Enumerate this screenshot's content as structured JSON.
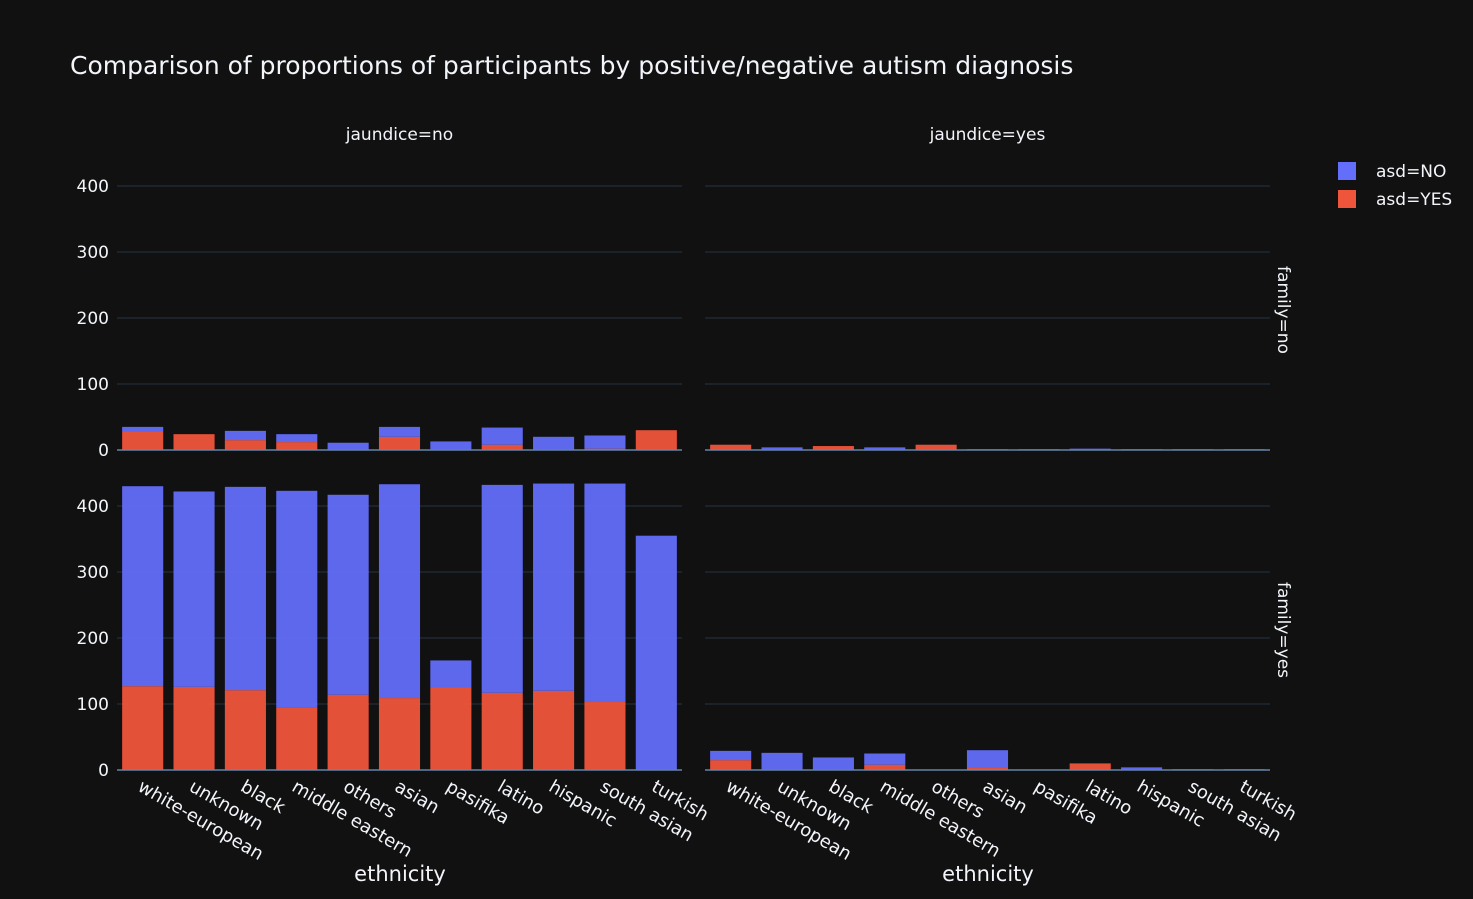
{
  "chart_data": {
    "type": "bar",
    "title": "Comparison of proportions of participants by positive/negative autism diagnosis",
    "xlabel": "ethnicity",
    "ylabel": "",
    "ylim": [
      0,
      440
    ],
    "yticks": [
      0,
      100,
      200,
      300,
      400
    ],
    "grid": true,
    "legend_position": "top-right",
    "categories": [
      "white-european",
      "unknown",
      "black",
      "middle eastern",
      "others",
      "asian",
      "pasifika",
      "latino",
      "hispanic",
      "south asian",
      "turkish"
    ],
    "col_labels": [
      "jaundice=no",
      "jaundice=yes"
    ],
    "row_labels": [
      "family=no",
      "family=yes"
    ],
    "series": [
      {
        "name": "asd=NO",
        "color": "#636efa"
      },
      {
        "name": "asd=YES",
        "color": "#ef553b"
      }
    ],
    "panels": [
      {
        "label": "jaundice=no, family=no",
        "row": 0,
        "col": 0,
        "stacks": [
          [
            {
              "series": 1,
              "value": 28
            },
            {
              "series": 0,
              "value": 7
            }
          ],
          [
            {
              "series": 1,
              "value": 24
            },
            {
              "series": 0,
              "value": 0
            }
          ],
          [
            {
              "series": 1,
              "value": 15
            },
            {
              "series": 0,
              "value": 14
            }
          ],
          [
            {
              "series": 1,
              "value": 12
            },
            {
              "series": 0,
              "value": 12
            }
          ],
          [
            {
              "series": 1,
              "value": 0
            },
            {
              "series": 0,
              "value": 11
            }
          ],
          [
            {
              "series": 1,
              "value": 20
            },
            {
              "series": 0,
              "value": 15
            }
          ],
          [
            {
              "series": 1,
              "value": 0
            },
            {
              "series": 0,
              "value": 13
            }
          ],
          [
            {
              "series": 1,
              "value": 8
            },
            {
              "series": 0,
              "value": 26
            }
          ],
          [
            {
              "series": 1,
              "value": 0
            },
            {
              "series": 0,
              "value": 20
            }
          ],
          [
            {
              "series": 1,
              "value": 2
            },
            {
              "series": 0,
              "value": 20
            }
          ],
          [
            {
              "series": 1,
              "value": 30
            },
            {
              "series": 0,
              "value": 0
            }
          ]
        ]
      },
      {
        "label": "jaundice=yes, family=no",
        "row": 0,
        "col": 1,
        "stacks": [
          [
            {
              "series": 1,
              "value": 8
            },
            {
              "series": 0,
              "value": 0
            }
          ],
          [
            {
              "series": 1,
              "value": 0
            },
            {
              "series": 0,
              "value": 4
            }
          ],
          [
            {
              "series": 1,
              "value": 6
            },
            {
              "series": 0,
              "value": 0
            }
          ],
          [
            {
              "series": 1,
              "value": 0
            },
            {
              "series": 0,
              "value": 4
            }
          ],
          [
            {
              "series": 1,
              "value": 8
            },
            {
              "series": 0,
              "value": 0
            }
          ],
          [
            {
              "series": 1,
              "value": 0
            },
            {
              "series": 0,
              "value": 1
            }
          ],
          [
            {
              "series": 1,
              "value": 0
            },
            {
              "series": 0,
              "value": 1
            }
          ],
          [
            {
              "series": 1,
              "value": 0
            },
            {
              "series": 0,
              "value": 2
            }
          ],
          [
            {
              "series": 1,
              "value": 0
            },
            {
              "series": 0,
              "value": 1
            }
          ],
          [
            {
              "series": 1,
              "value": 0
            },
            {
              "series": 0,
              "value": 1
            }
          ],
          [
            {
              "series": 1,
              "value": 0
            },
            {
              "series": 0,
              "value": 1
            }
          ]
        ]
      },
      {
        "label": "jaundice=no, family=yes",
        "row": 1,
        "col": 0,
        "stacks": [
          [
            {
              "series": 1,
              "value": 127
            },
            {
              "series": 0,
              "value": 303
            }
          ],
          [
            {
              "series": 1,
              "value": 126
            },
            {
              "series": 0,
              "value": 296
            }
          ],
          [
            {
              "series": 1,
              "value": 121
            },
            {
              "series": 0,
              "value": 308
            }
          ],
          [
            {
              "series": 1,
              "value": 94
            },
            {
              "series": 0,
              "value": 329
            }
          ],
          [
            {
              "series": 1,
              "value": 114
            },
            {
              "series": 0,
              "value": 303
            }
          ],
          [
            {
              "series": 1,
              "value": 109
            },
            {
              "series": 0,
              "value": 324
            }
          ],
          [
            {
              "series": 1,
              "value": 125
            },
            {
              "series": 0,
              "value": 41
            }
          ],
          [
            {
              "series": 1,
              "value": 117
            },
            {
              "series": 0,
              "value": 315
            }
          ],
          [
            {
              "series": 1,
              "value": 120
            },
            {
              "series": 0,
              "value": 314
            }
          ],
          [
            {
              "series": 1,
              "value": 103
            },
            {
              "series": 0,
              "value": 331
            }
          ],
          [
            {
              "series": 1,
              "value": 0
            },
            {
              "series": 0,
              "value": 355
            }
          ]
        ]
      },
      {
        "label": "jaundice=yes, family=yes",
        "row": 1,
        "col": 1,
        "stacks": [
          [
            {
              "series": 1,
              "value": 15
            },
            {
              "series": 0,
              "value": 14
            }
          ],
          [
            {
              "series": 1,
              "value": 0
            },
            {
              "series": 0,
              "value": 26
            }
          ],
          [
            {
              "series": 1,
              "value": 0
            },
            {
              "series": 0,
              "value": 19
            }
          ],
          [
            {
              "series": 1,
              "value": 8
            },
            {
              "series": 0,
              "value": 17
            }
          ],
          [
            {
              "series": 1,
              "value": 0
            },
            {
              "series": 0,
              "value": 0
            }
          ],
          [
            {
              "series": 1,
              "value": 3
            },
            {
              "series": 0,
              "value": 27
            }
          ],
          [
            {
              "series": 1,
              "value": 0
            },
            {
              "series": 0,
              "value": 0
            }
          ],
          [
            {
              "series": 1,
              "value": 10
            },
            {
              "series": 0,
              "value": 0
            }
          ],
          [
            {
              "series": 1,
              "value": 0
            },
            {
              "series": 0,
              "value": 4
            }
          ],
          [
            {
              "series": 1,
              "value": 0
            },
            {
              "series": 0,
              "value": 1
            }
          ],
          [
            {
              "series": 1,
              "value": 0
            },
            {
              "series": 0,
              "value": 1
            }
          ]
        ]
      }
    ]
  }
}
